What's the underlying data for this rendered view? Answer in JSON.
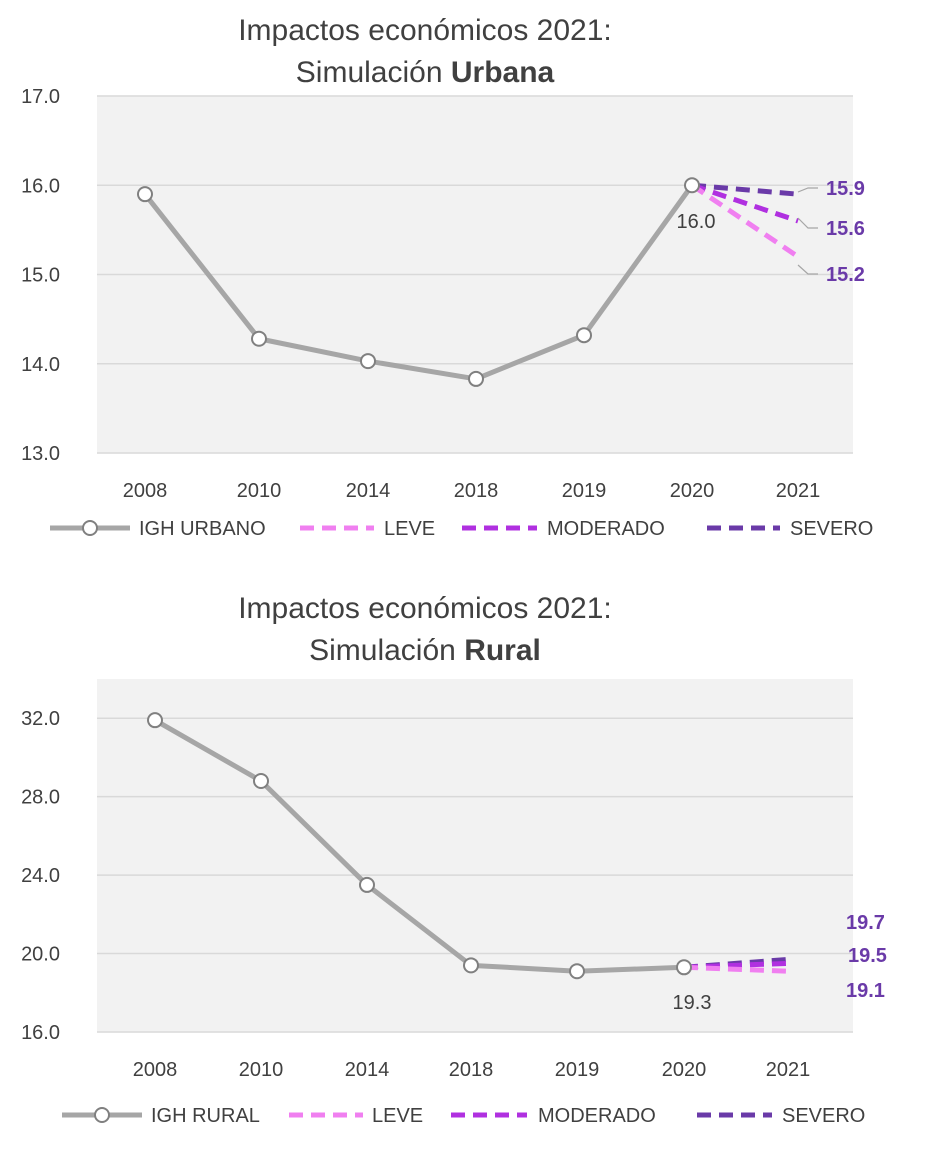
{
  "colors": {
    "historic": "#a6a6a6",
    "leve": "#f07ff0",
    "moderado": "#b030e0",
    "severo": "#6a3aa8",
    "plot_bg": "#f2f2f2",
    "grid": "#d9d9d9",
    "label_text": "#6a3aa8"
  },
  "chart_data": [
    {
      "type": "line",
      "title_line1": "Impactos económicos 2021:",
      "title_prefix": "Simulación",
      "title_bold": "Urbana",
      "categories": [
        "2008",
        "2010",
        "2014",
        "2018",
        "2019",
        "2020",
        "2021"
      ],
      "ylim": [
        13.0,
        17.0
      ],
      "yticks": [
        13.0,
        14.0,
        15.0,
        16.0,
        17.0
      ],
      "ytick_labels": [
        "13.0",
        "14.0",
        "15.0",
        "16.0",
        "17.0"
      ],
      "grid": true,
      "legend_position": "bottom",
      "series": [
        {
          "name": "IGH URBANO",
          "style": "solid-markers",
          "values": [
            15.9,
            14.28,
            14.03,
            13.83,
            14.32,
            16.0,
            null
          ],
          "point_label": "16.0"
        },
        {
          "name": "LEVE",
          "style": "dashed",
          "values": [
            null,
            null,
            null,
            null,
            null,
            16.0,
            15.2
          ],
          "end_label": "15.2"
        },
        {
          "name": "MODERADO",
          "style": "dashed",
          "values": [
            null,
            null,
            null,
            null,
            null,
            16.0,
            15.6
          ],
          "end_label": "15.6"
        },
        {
          "name": "SEVERO",
          "style": "dashed",
          "values": [
            null,
            null,
            null,
            null,
            null,
            16.0,
            15.9
          ],
          "end_label": "15.9"
        }
      ]
    },
    {
      "type": "line",
      "title_line1": "Impactos económicos 2021:",
      "title_prefix": "Simulación",
      "title_bold": "Rural",
      "categories": [
        "2008",
        "2010",
        "2014",
        "2018",
        "2019",
        "2020",
        "2021"
      ],
      "ylim": [
        16.0,
        34.0
      ],
      "yticks": [
        16.0,
        20.0,
        24.0,
        28.0,
        32.0
      ],
      "ytick_labels": [
        "16.0",
        "20.0",
        "24.0",
        "28.0",
        "32.0"
      ],
      "grid": true,
      "legend_position": "bottom",
      "series": [
        {
          "name": "IGH RURAL",
          "style": "solid-markers",
          "values": [
            31.9,
            28.8,
            23.5,
            19.4,
            19.1,
            19.3,
            null
          ],
          "point_label": "19.3"
        },
        {
          "name": "LEVE",
          "style": "dashed",
          "values": [
            null,
            null,
            null,
            null,
            null,
            19.3,
            19.1
          ],
          "end_label": "19.1"
        },
        {
          "name": "MODERADO",
          "style": "dashed",
          "values": [
            null,
            null,
            null,
            null,
            null,
            19.3,
            19.5
          ],
          "end_label": "19.5"
        },
        {
          "name": "SEVERO",
          "style": "dashed",
          "values": [
            null,
            null,
            null,
            null,
            null,
            19.3,
            19.7
          ],
          "end_label": "19.7"
        }
      ]
    }
  ]
}
